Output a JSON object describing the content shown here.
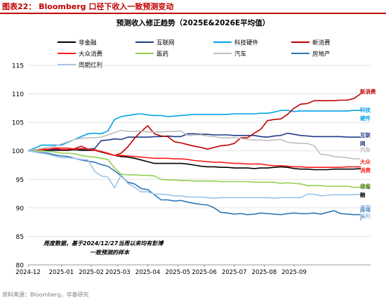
{
  "header": {
    "figure_title": "图表22：  Bloomberg 口径下收入一致预测变动"
  },
  "source_note": "资料来源：Bloomberg，华泰研究",
  "chart_data": {
    "type": "line",
    "title": "预测收入修正趋势（2025E&2026E平均值）",
    "annotation": [
      "周度数据，基于2024/12/27当周以来均有彭博",
      "一致预测的样本"
    ],
    "ylim": [
      80,
      115
    ],
    "yticks": [
      80,
      85,
      90,
      95,
      100,
      105,
      110,
      115
    ],
    "xlim": [
      0,
      51.5
    ],
    "xticks": [
      {
        "label": "2024-12",
        "x": 0
      },
      {
        "label": "2025-01",
        "x": 5
      },
      {
        "label": "2025-02",
        "x": 9.5
      },
      {
        "label": "2025-03",
        "x": 13.5
      },
      {
        "label": "2025-04",
        "x": 18
      },
      {
        "label": "2025-05",
        "x": 22.5
      },
      {
        "label": "2025-06",
        "x": 26.5
      },
      {
        "label": "2025-07",
        "x": 31
      },
      {
        "label": "2025-08",
        "x": 35.5
      },
      {
        "label": "2025-09",
        "x": 40
      }
    ],
    "grid": "horizontal",
    "legend_position": "top",
    "series": [
      {
        "name": "非金融",
        "color": "#000000",
        "end_label": [
          "非金",
          "融"
        ],
        "values": [
          100,
          100,
          100,
          100.1,
          100.1,
          100.1,
          100.1,
          100.2,
          100.1,
          100.1,
          100.1,
          99.8,
          99.5,
          99.2,
          99,
          98.9,
          98.7,
          98.4,
          98.1,
          97.8,
          97.8,
          97.8,
          97.8,
          97.8,
          97.7,
          97.5,
          97.3,
          97.2,
          97.2,
          97.1,
          97.1,
          97,
          97,
          97,
          96.9,
          97,
          97,
          97.1,
          97.2,
          97.1,
          96.9,
          96.8,
          96.8,
          96.7,
          96.7,
          96.7,
          96.8,
          96.8,
          96.8,
          96.8,
          96.9
        ]
      },
      {
        "name": "互联网",
        "color": "#1f3c88",
        "end_label": [
          "互联",
          "网"
        ],
        "values": [
          100,
          100.1,
          100.2,
          100.2,
          100.2,
          100.2,
          100.2,
          100.3,
          100.3,
          100.3,
          100.4,
          101.8,
          101.9,
          102.1,
          102,
          102.4,
          102.4,
          102.4,
          102.4,
          102.5,
          102.5,
          102.6,
          102.5,
          102.5,
          103,
          103,
          102.9,
          102.9,
          102.8,
          102.8,
          102.8,
          102.7,
          102.7,
          102.7,
          102.7,
          102.5,
          102.4,
          102.6,
          102.7,
          103.1,
          102.9,
          102.7,
          102.6,
          102.5,
          102.5,
          102.5,
          102.5,
          102.5,
          102.4,
          102.4,
          102.4
        ]
      },
      {
        "name": "科技硬件",
        "color": "#00a2e8",
        "end_label": [
          "科技",
          "硬件"
        ],
        "values": [
          100,
          100.5,
          101,
          101,
          101,
          101,
          101.5,
          102,
          102.5,
          103,
          103.1,
          103,
          103.5,
          105.5,
          106,
          106.2,
          106.4,
          106.5,
          106.3,
          106.2,
          106.2,
          106,
          106.1,
          106.2,
          106.3,
          106.4,
          106.4,
          106.4,
          106.4,
          106.4,
          106.4,
          106.5,
          106.5,
          106.5,
          106.5,
          106.6,
          106.6,
          106.8,
          107.1,
          107.1,
          106.9,
          107,
          107,
          107,
          107,
          107,
          107,
          107,
          107,
          107.1,
          107.1
        ]
      },
      {
        "name": "新消费",
        "color": "#c00000",
        "end_label": [
          "新消费"
        ],
        "values": [
          100,
          100.2,
          100.3,
          100.3,
          100.4,
          100.2,
          100.2,
          100.4,
          100.8,
          100.3,
          100.2,
          99.9,
          99.5,
          99.2,
          99.6,
          100.7,
          102.2,
          103.4,
          104.4,
          103,
          102.6,
          102.5,
          101.6,
          101.4,
          101.1,
          100.8,
          100.6,
          100.3,
          100.6,
          100.9,
          101,
          101.3,
          102.3,
          102.3,
          103.1,
          103.8,
          105.3,
          105.5,
          105.6,
          106.4,
          107.5,
          108.2,
          108.3,
          108.8,
          108.8,
          108.8,
          108.8,
          108.9,
          108.9,
          109.2,
          110
        ]
      },
      {
        "name": "大众消费",
        "color": "#ff1a1a",
        "end_label": [
          "大众",
          "消费"
        ],
        "values": [
          100,
          100.1,
          100.2,
          100.3,
          100.5,
          100.5,
          100.5,
          100.3,
          100.4,
          100.3,
          100.1,
          99.9,
          99.6,
          99.2,
          99.2,
          99.1,
          99,
          98.9,
          98.8,
          98.7,
          98.7,
          98.7,
          98.6,
          98.6,
          98.5,
          98.3,
          98.2,
          98.1,
          98,
          98,
          97.9,
          97.8,
          97.8,
          97.7,
          97.7,
          97.7,
          97.5,
          97.4,
          97.4,
          97.3,
          97.2,
          97.2,
          97.1,
          97.1,
          97.1,
          97.1,
          97.1,
          97.1,
          97.2,
          97.2,
          97.2
        ]
      },
      {
        "name": "医药",
        "color": "#92d050",
        "end_label": [
          "医药"
        ],
        "values": [
          100,
          100,
          100,
          99.9,
          99.8,
          99.6,
          99.6,
          99.5,
          99.2,
          99,
          98.9,
          98.7,
          98.5,
          97,
          95.9,
          95.8,
          95.8,
          95.7,
          95.7,
          95.6,
          95,
          94.9,
          94.9,
          94.8,
          94.8,
          94.7,
          94.7,
          94.7,
          94.7,
          94.6,
          94.6,
          94.6,
          94.6,
          94.6,
          94.5,
          94.5,
          94.5,
          94.5,
          94.3,
          94.4,
          94.3,
          94.2,
          93.9,
          93.9,
          93.9,
          93.8,
          93.8,
          93.8,
          93.8,
          93.6,
          93.6
        ]
      },
      {
        "name": "汽车",
        "color": "#bfbfbf",
        "end_label": [
          "汽车"
        ],
        "values": [
          100,
          100.2,
          100.4,
          100.6,
          100.8,
          101.2,
          101.6,
          102,
          102.2,
          102.3,
          102.3,
          102.4,
          102.8,
          103.2,
          103.6,
          103.4,
          103.4,
          103.5,
          103.3,
          103.3,
          103.3,
          103.4,
          103.4,
          103.5,
          102.7,
          102.8,
          102.8,
          102.6,
          102.5,
          102.3,
          102.3,
          102.3,
          102.2,
          102,
          101.9,
          101.9,
          101.8,
          101.9,
          102,
          101.5,
          101.4,
          101.3,
          101.3,
          100.9,
          99.4,
          99.3,
          99,
          98.9,
          98.8,
          98.6,
          98.6
        ]
      },
      {
        "name": "房地产",
        "color": "#2e75b6",
        "end_label": [
          "房地",
          "产"
        ],
        "values": [
          100,
          99.8,
          99.7,
          99.6,
          99.3,
          99.1,
          99,
          98.7,
          98.4,
          98.2,
          98,
          97.6,
          97.3,
          96.5,
          95.6,
          94.5,
          94.2,
          93.4,
          93.2,
          92.3,
          91.4,
          91.4,
          91.2,
          91.3,
          91,
          90.8,
          90.6,
          90.5,
          90,
          89.2,
          89.1,
          88.9,
          89,
          88.8,
          88.9,
          89.1,
          89,
          88.9,
          88.8,
          89,
          89.1,
          89,
          89,
          89.1,
          88.9,
          89.2,
          89.5,
          89,
          88.9,
          88.8,
          88.8
        ]
      },
      {
        "name": "周期红利",
        "color": "#9dc3e6",
        "end_label": [
          "周期",
          "红利"
        ],
        "values": [
          100,
          99.8,
          99.6,
          99.4,
          99.1,
          98.8,
          98.8,
          98.7,
          98.5,
          98.4,
          96.4,
          95.6,
          95.4,
          93.5,
          95.8,
          94.3,
          93.6,
          92.8,
          92.8,
          92.4,
          92.4,
          92.3,
          92.1,
          92.1,
          91.9,
          91.9,
          91.9,
          91.8,
          91.7,
          91.8,
          91.8,
          91.8,
          91.8,
          91.8,
          91.8,
          91.8,
          91.8,
          91.7,
          91.8,
          91.8,
          91.8,
          91.8,
          92.4,
          92.4,
          92.1,
          92.2,
          92.3,
          92.3,
          92.3,
          92.3,
          92.4
        ]
      }
    ]
  }
}
